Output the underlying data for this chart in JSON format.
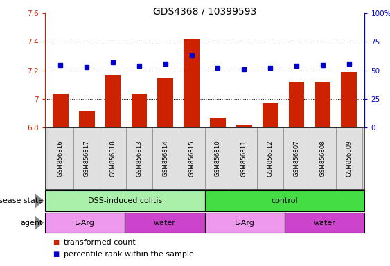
{
  "title": "GDS4368 / 10399593",
  "samples": [
    "GSM856816",
    "GSM856817",
    "GSM856818",
    "GSM856813",
    "GSM856814",
    "GSM856815",
    "GSM856810",
    "GSM856811",
    "GSM856812",
    "GSM856807",
    "GSM856808",
    "GSM856809"
  ],
  "bar_values": [
    7.04,
    6.92,
    7.17,
    7.04,
    7.15,
    7.42,
    6.87,
    6.82,
    6.97,
    7.12,
    7.12,
    7.19
  ],
  "dot_values": [
    55,
    53,
    57,
    54,
    56,
    63,
    52,
    51,
    52,
    54,
    55,
    56
  ],
  "ylim_left": [
    6.8,
    7.6
  ],
  "ylim_right": [
    0,
    100
  ],
  "yticks_left": [
    6.8,
    7.0,
    7.2,
    7.4,
    7.6
  ],
  "yticks_right": [
    0,
    25,
    50,
    75,
    100
  ],
  "bar_color": "#cc2200",
  "dot_color": "#0000cc",
  "bar_bottom": 6.8,
  "disease_state_groups": [
    {
      "label": "DSS-induced colitis",
      "start": 0,
      "end": 6,
      "color": "#aaf0aa"
    },
    {
      "label": "control",
      "start": 6,
      "end": 12,
      "color": "#44dd44"
    }
  ],
  "agent_groups": [
    {
      "label": "L-Arg",
      "start": 0,
      "end": 3,
      "color": "#ee99ee"
    },
    {
      "label": "water",
      "start": 3,
      "end": 6,
      "color": "#cc44cc"
    },
    {
      "label": "L-Arg",
      "start": 6,
      "end": 9,
      "color": "#ee99ee"
    },
    {
      "label": "water",
      "start": 9,
      "end": 12,
      "color": "#cc44cc"
    }
  ],
  "legend_items": [
    {
      "label": "transformed count",
      "color": "#cc2200"
    },
    {
      "label": "percentile rank within the sample",
      "color": "#0000cc"
    }
  ],
  "dotted_lines": [
    7.0,
    7.2,
    7.4
  ],
  "title_fontsize": 10,
  "tick_fontsize": 7.5,
  "label_fontsize": 8.5,
  "legend_fontsize": 8
}
